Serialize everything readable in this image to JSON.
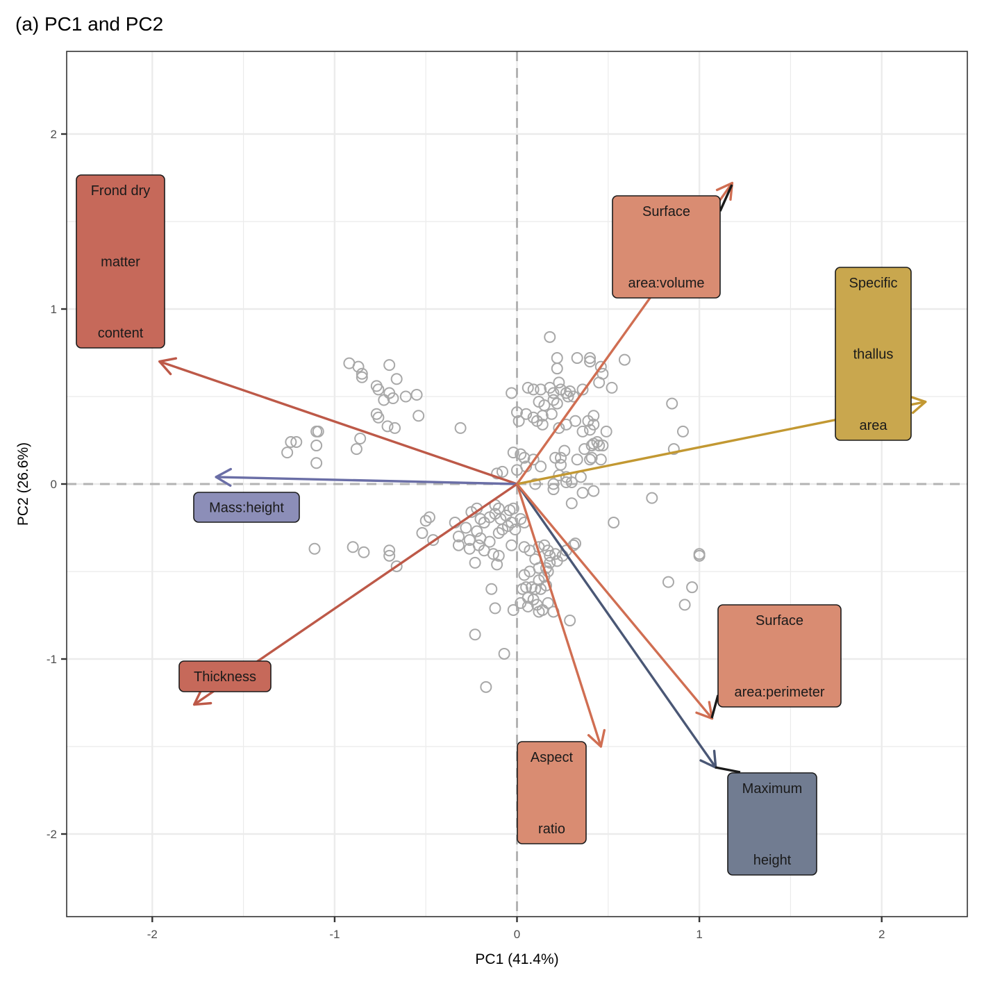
{
  "chart_data": {
    "type": "scatter",
    "title": "(a) PC1 and PC2",
    "xlabel": "PC1 (41.4%)",
    "ylabel": "PC2 (26.6%)",
    "xlim": [
      -2.47,
      2.47
    ],
    "ylim": [
      -2.47,
      2.47
    ],
    "x_ticks": [
      -2,
      -1,
      0,
      1,
      2
    ],
    "y_ticks": [
      -2,
      -1,
      0,
      1,
      2
    ],
    "x_tick_labels": [
      "-2",
      "-1",
      "0",
      "1",
      "2"
    ],
    "y_tick_labels": [
      "-2",
      "-1",
      "0",
      "1",
      "2"
    ],
    "grid": true,
    "zero_lines": "dashed",
    "point_color": "#a8a8a8",
    "points": [
      [
        -0.92,
        0.69
      ],
      [
        -0.87,
        0.67
      ],
      [
        -0.85,
        0.63
      ],
      [
        -0.85,
        0.61
      ],
      [
        -0.7,
        0.68
      ],
      [
        -0.66,
        0.6
      ],
      [
        -0.77,
        0.56
      ],
      [
        -0.76,
        0.54
      ],
      [
        -0.73,
        0.48
      ],
      [
        -0.7,
        0.52
      ],
      [
        -0.68,
        0.49
      ],
      [
        -0.61,
        0.5
      ],
      [
        -0.55,
        0.51
      ],
      [
        -0.77,
        0.4
      ],
      [
        -0.76,
        0.38
      ],
      [
        -0.54,
        0.39
      ],
      [
        -0.71,
        0.33
      ],
      [
        -0.67,
        0.32
      ],
      [
        -0.31,
        0.32
      ],
      [
        -1.09,
        0.3
      ],
      [
        -1.1,
        0.3
      ],
      [
        -1.1,
        0.22
      ],
      [
        -1.24,
        0.24
      ],
      [
        -1.21,
        0.24
      ],
      [
        -1.26,
        0.18
      ],
      [
        -0.86,
        0.26
      ],
      [
        -0.88,
        0.2
      ],
      [
        -1.1,
        0.12
      ],
      [
        0.18,
        0.84
      ],
      [
        0.22,
        0.72
      ],
      [
        0.33,
        0.72
      ],
      [
        0.4,
        0.72
      ],
      [
        0.4,
        0.7
      ],
      [
        0.46,
        0.67
      ],
      [
        0.59,
        0.71
      ],
      [
        0.22,
        0.66
      ],
      [
        0.47,
        0.63
      ],
      [
        0.23,
        0.58
      ],
      [
        0.45,
        0.58
      ],
      [
        0.52,
        0.55
      ],
      [
        0.06,
        0.55
      ],
      [
        0.09,
        0.54
      ],
      [
        0.13,
        0.54
      ],
      [
        0.18,
        0.55
      ],
      [
        0.2,
        0.52
      ],
      [
        0.24,
        0.54
      ],
      [
        0.27,
        0.52
      ],
      [
        0.29,
        0.53
      ],
      [
        0.31,
        0.5
      ],
      [
        0.28,
        0.5
      ],
      [
        0.36,
        0.54
      ],
      [
        -0.03,
        0.52
      ],
      [
        0.85,
        0.46
      ],
      [
        0.91,
        0.3
      ],
      [
        0.86,
        0.2
      ],
      [
        0.12,
        0.47
      ],
      [
        0.15,
        0.45
      ],
      [
        0.2,
        0.48
      ],
      [
        0.22,
        0.46
      ],
      [
        0.0,
        0.41
      ],
      [
        0.05,
        0.4
      ],
      [
        0.09,
        0.38
      ],
      [
        0.14,
        0.39
      ],
      [
        0.19,
        0.4
      ],
      [
        0.11,
        0.36
      ],
      [
        0.14,
        0.34
      ],
      [
        0.01,
        0.36
      ],
      [
        0.23,
        0.32
      ],
      [
        0.27,
        0.34
      ],
      [
        0.32,
        0.36
      ],
      [
        0.36,
        0.3
      ],
      [
        0.39,
        0.36
      ],
      [
        0.42,
        0.34
      ],
      [
        0.4,
        0.31
      ],
      [
        0.42,
        0.39
      ],
      [
        0.49,
        0.3
      ],
      [
        0.37,
        0.2
      ],
      [
        0.26,
        0.19
      ],
      [
        0.41,
        0.22
      ],
      [
        0.42,
        0.23
      ],
      [
        0.44,
        0.24
      ],
      [
        0.45,
        0.22
      ],
      [
        0.47,
        0.22
      ],
      [
        0.41,
        0.15
      ],
      [
        0.46,
        0.14
      ],
      [
        0.4,
        0.14
      ],
      [
        0.33,
        0.14
      ],
      [
        0.24,
        0.15
      ],
      [
        0.21,
        0.15
      ],
      [
        0.24,
        0.11
      ],
      [
        0.13,
        0.1
      ],
      [
        -0.02,
        0.18
      ],
      [
        0.02,
        0.17
      ],
      [
        0.04,
        0.15
      ],
      [
        0.09,
        0.14
      ],
      [
        0.05,
        0.1
      ],
      [
        0.0,
        0.08
      ],
      [
        -0.11,
        0.06
      ],
      [
        -0.08,
        0.07
      ],
      [
        0.23,
        0.05
      ],
      [
        0.27,
        0.04
      ],
      [
        0.35,
        0.04
      ],
      [
        0.3,
        0.01
      ],
      [
        0.27,
        0.01
      ],
      [
        0.2,
        0.0
      ],
      [
        0.1,
        0.0
      ],
      [
        0.2,
        -0.03
      ],
      [
        0.36,
        -0.05
      ],
      [
        0.42,
        -0.04
      ],
      [
        0.74,
        -0.08
      ],
      [
        0.3,
        -0.11
      ],
      [
        0.53,
        -0.22
      ],
      [
        -0.48,
        -0.19
      ],
      [
        -0.5,
        -0.21
      ],
      [
        -0.52,
        -0.28
      ],
      [
        -0.46,
        -0.32
      ],
      [
        -0.34,
        -0.22
      ],
      [
        -0.28,
        -0.25
      ],
      [
        -0.22,
        -0.27
      ],
      [
        -0.32,
        -0.3
      ],
      [
        -0.26,
        -0.32
      ],
      [
        -0.2,
        -0.31
      ],
      [
        -0.15,
        -0.33
      ],
      [
        -0.1,
        -0.28
      ],
      [
        -0.08,
        -0.26
      ],
      [
        -0.05,
        -0.24
      ],
      [
        -0.03,
        -0.22
      ],
      [
        -0.18,
        -0.22
      ],
      [
        -0.2,
        -0.2
      ],
      [
        -0.15,
        -0.19
      ],
      [
        -0.12,
        -0.17
      ],
      [
        -0.09,
        -0.2
      ],
      [
        -0.06,
        -0.18
      ],
      [
        -0.04,
        -0.15
      ],
      [
        -0.02,
        -0.14
      ],
      [
        -0.1,
        -0.14
      ],
      [
        -0.22,
        -0.14
      ],
      [
        -0.12,
        -0.12
      ],
      [
        -0.25,
        -0.16
      ],
      [
        0.02,
        -0.2
      ],
      [
        0.04,
        -0.22
      ],
      [
        -0.01,
        -0.26
      ],
      [
        -0.32,
        -0.35
      ],
      [
        -0.26,
        -0.37
      ],
      [
        -0.21,
        -0.35
      ],
      [
        -0.18,
        -0.38
      ],
      [
        -0.13,
        -0.4
      ],
      [
        -0.1,
        -0.41
      ],
      [
        -0.11,
        -0.46
      ],
      [
        -0.23,
        -0.45
      ],
      [
        -0.03,
        -0.35
      ],
      [
        0.04,
        -0.36
      ],
      [
        0.07,
        -0.38
      ],
      [
        0.12,
        -0.36
      ],
      [
        0.15,
        -0.35
      ],
      [
        0.17,
        -0.38
      ],
      [
        0.18,
        -0.41
      ],
      [
        0.21,
        -0.4
      ],
      [
        0.22,
        -0.44
      ],
      [
        0.25,
        -0.41
      ],
      [
        0.27,
        -0.38
      ],
      [
        0.31,
        -0.35
      ],
      [
        0.32,
        -0.34
      ],
      [
        0.18,
        -0.45
      ],
      [
        0.16,
        -0.48
      ],
      [
        0.1,
        -0.43
      ],
      [
        0.12,
        -0.48
      ],
      [
        0.07,
        -0.5
      ],
      [
        0.04,
        -0.52
      ],
      [
        0.15,
        -0.53
      ],
      [
        0.12,
        -0.55
      ],
      [
        0.17,
        -0.5
      ],
      [
        0.16,
        -0.58
      ],
      [
        0.13,
        -0.6
      ],
      [
        0.1,
        -0.6
      ],
      [
        0.08,
        -0.59
      ],
      [
        0.05,
        -0.59
      ],
      [
        0.03,
        -0.6
      ],
      [
        0.06,
        -0.65
      ],
      [
        0.09,
        -0.66
      ],
      [
        0.11,
        -0.69
      ],
      [
        0.06,
        -0.7
      ],
      [
        0.12,
        -0.73
      ],
      [
        0.14,
        -0.72
      ],
      [
        0.17,
        -0.68
      ],
      [
        0.2,
        -0.73
      ],
      [
        -0.02,
        -0.72
      ],
      [
        -0.12,
        -0.71
      ],
      [
        -0.14,
        -0.6
      ],
      [
        0.29,
        -0.78
      ],
      [
        0.02,
        -0.68
      ],
      [
        -1.11,
        -0.37
      ],
      [
        -0.9,
        -0.36
      ],
      [
        -0.84,
        -0.39
      ],
      [
        -0.7,
        -0.38
      ],
      [
        -0.7,
        -0.41
      ],
      [
        -0.66,
        -0.47
      ],
      [
        1.0,
        -0.4
      ],
      [
        1.0,
        -0.41
      ],
      [
        0.83,
        -0.56
      ],
      [
        0.96,
        -0.59
      ],
      [
        0.92,
        -0.69
      ],
      [
        -0.23,
        -0.86
      ],
      [
        -0.07,
        -0.97
      ],
      [
        -0.17,
        -1.16
      ]
    ],
    "vectors": [
      {
        "label": "Frond dry matter content",
        "lines": [
          "Frond dry",
          "matter",
          "content"
        ],
        "x": -1.96,
        "y": 0.7,
        "color": "#bd5948",
        "fill": "#c6695a"
      },
      {
        "label": "Surface area:volume",
        "lines": [
          "Surface",
          "area:volume"
        ],
        "x": 1.18,
        "y": 1.72,
        "color": "#d06e52",
        "fill": "#d98c72"
      },
      {
        "label": "Specific thallus area",
        "lines": [
          "Specific",
          "thallus",
          "area"
        ],
        "x": 2.24,
        "y": 0.47,
        "color": "#c29832",
        "fill": "#c9a74e"
      },
      {
        "label": "Mass:height",
        "lines": [
          "Mass:height"
        ],
        "x": -1.65,
        "y": 0.04,
        "color": "#6a6ea6",
        "fill": "#8c8eb8"
      },
      {
        "label": "Thickness",
        "lines": [
          "Thickness"
        ],
        "x": -1.77,
        "y": -1.26,
        "color": "#bd5948",
        "fill": "#c6695a"
      },
      {
        "label": "Aspect ratio",
        "lines": [
          "Aspect",
          "ratio"
        ],
        "x": 0.46,
        "y": -1.5,
        "color": "#d06e52",
        "fill": "#d98c72"
      },
      {
        "label": "Maximum height",
        "lines": [
          "Maximum",
          "height"
        ],
        "x": 1.09,
        "y": -1.62,
        "color": "#4a5775",
        "fill": "#717c91"
      },
      {
        "label": "Surface area:perimeter",
        "lines": [
          "Surface",
          "area:perimeter"
        ],
        "x": 1.07,
        "y": -1.34,
        "color": "#d06e52",
        "fill": "#d98c72"
      }
    ]
  }
}
